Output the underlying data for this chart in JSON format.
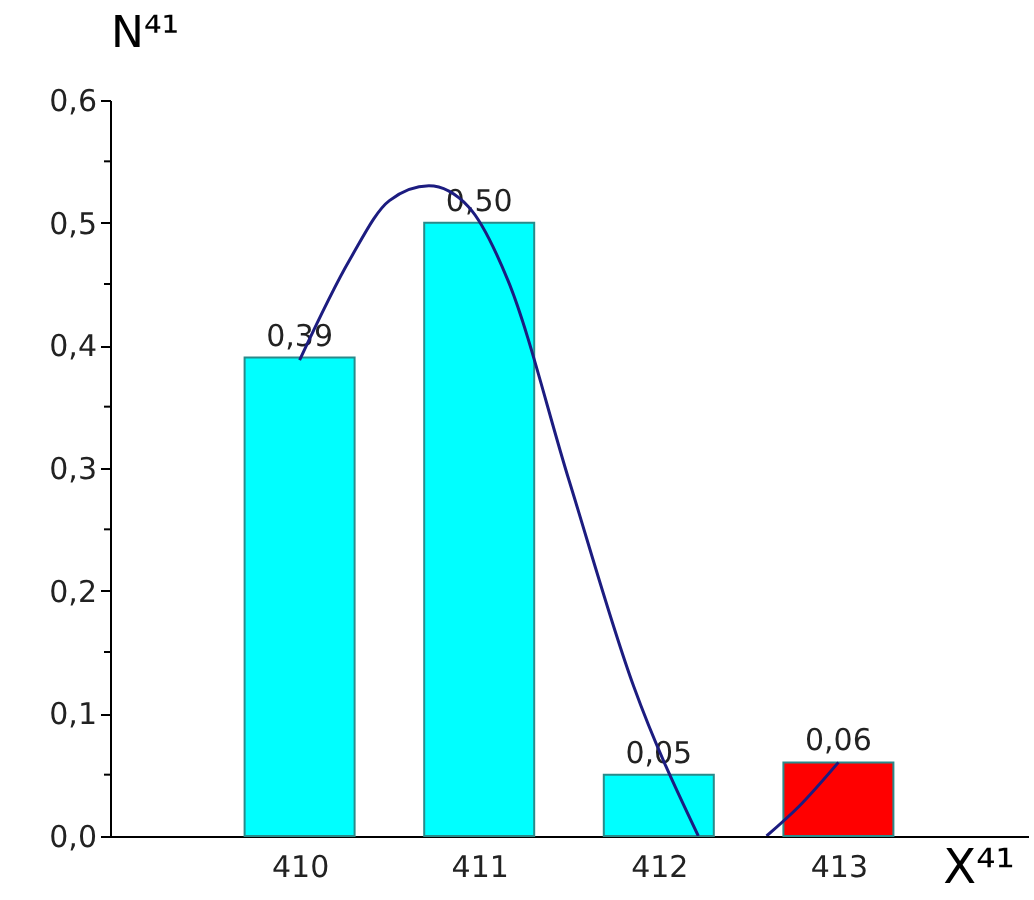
{
  "chart_data": {
    "type": "bar",
    "xlabel": "X⁴¹",
    "ylabel": "N⁴¹",
    "xlim": [
      409,
      414
    ],
    "xticks": [
      410,
      411,
      412,
      413
    ],
    "ylim": [
      0,
      0.6
    ],
    "yticks": [
      {
        "value": 0,
        "label": "0,0"
      },
      {
        "value": 0.05,
        "label": null
      },
      {
        "value": 0.1,
        "label": "0,1"
      },
      {
        "value": 0.15,
        "label": null
      },
      {
        "value": 0.2,
        "label": "0,2"
      },
      {
        "value": 0.25,
        "label": null
      },
      {
        "value": 0.3,
        "label": "0,3"
      },
      {
        "value": 0.35,
        "label": null
      },
      {
        "value": 0.4,
        "label": "0,4"
      },
      {
        "value": 0.45,
        "label": null
      },
      {
        "value": 0.5,
        "label": "0,5"
      },
      {
        "value": 0.55,
        "label": null
      },
      {
        "value": 0.6,
        "label": "0,6"
      }
    ],
    "grid": false,
    "series": [
      {
        "x": [
          410,
          411,
          412,
          413
        ],
        "values": [
          0.39,
          0.5,
          0.05,
          0.06
        ],
        "colors": [
          "#00ffff",
          "#00ffff",
          "#00ffff",
          "#ff0000"
        ],
        "value_labels": [
          "0,39",
          "0,50",
          "0,05",
          "0,06"
        ]
      },
      {
        "type": "line",
        "color": "#1c1c80",
        "x": [
          410.0,
          410.28,
          410.5,
          410.72,
          410.94,
          411.16,
          411.5,
          411.86,
          412.22,
          412.4,
          412.6,
          412.78,
          413.0
        ],
        "values": [
          0.388,
          0.47,
          0.518,
          0.53,
          0.513,
          0.453,
          0.29,
          0.122,
          0.0,
          null,
          0.0,
          0.024,
          0.06
        ]
      }
    ]
  }
}
